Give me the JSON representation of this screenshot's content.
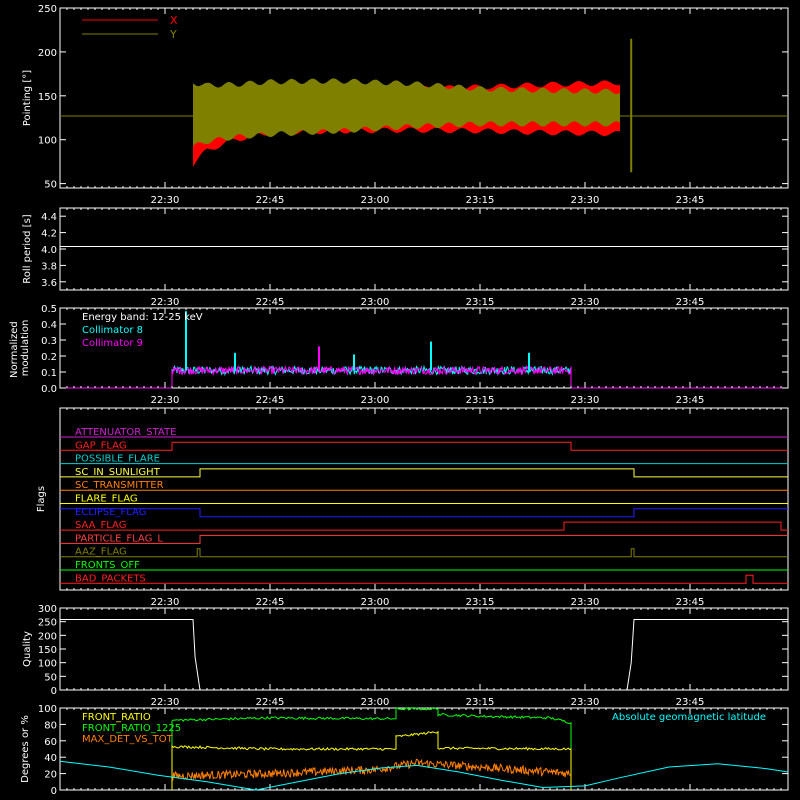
{
  "x_ticks": [
    "22:30",
    "22:45",
    "23:00",
    "23:15",
    "23:30",
    "23:45"
  ],
  "chart_data": [
    {
      "id": "pointing",
      "type": "line",
      "ylabel": "Pointing [°]",
      "ylim": [
        45,
        250
      ],
      "yticks": [
        "50",
        "100",
        "150",
        "200",
        "250"
      ],
      "yticks_values": [
        50,
        100,
        150,
        200,
        250
      ],
      "legend": {
        "placement": "top-left",
        "entries": [
          {
            "name": "X",
            "color": "#ff0000"
          },
          {
            "name": "Y",
            "color": "#808000"
          }
        ]
      },
      "series": [
        {
          "name": "X",
          "color": "#ff0000",
          "envelope": [
            {
              "t": "22:34",
              "lo": 72,
              "hi": 160
            },
            {
              "t": "22:36",
              "lo": 88,
              "hi": 152
            },
            {
              "t": "22:40",
              "lo": 100,
              "hi": 155
            },
            {
              "t": "22:45",
              "lo": 108,
              "hi": 158
            },
            {
              "t": "22:55",
              "lo": 110,
              "hi": 157
            },
            {
              "t": "23:05",
              "lo": 111,
              "hi": 158
            },
            {
              "t": "23:15",
              "lo": 110,
              "hi": 160
            },
            {
              "t": "23:25",
              "lo": 108,
              "hi": 163
            },
            {
              "t": "23:35",
              "lo": 107,
              "hi": 165
            }
          ]
        },
        {
          "name": "Y",
          "color": "#808000",
          "envelope": [
            {
              "t": "22:34",
              "lo": 92,
              "hi": 165
            },
            {
              "t": "22:36",
              "lo": 98,
              "hi": 162
            },
            {
              "t": "22:40",
              "lo": 103,
              "hi": 163
            },
            {
              "t": "22:45",
              "lo": 106,
              "hi": 166
            },
            {
              "t": "22:55",
              "lo": 110,
              "hi": 167
            },
            {
              "t": "23:05",
              "lo": 115,
              "hi": 164
            },
            {
              "t": "23:15",
              "lo": 118,
              "hi": 158
            },
            {
              "t": "23:25",
              "lo": 118,
              "hi": 156
            },
            {
              "t": "23:35",
              "lo": 118,
              "hi": 155
            }
          ]
        }
      ],
      "baseline": {
        "value": 127,
        "color": "#808000"
      }
    },
    {
      "id": "roll",
      "type": "line",
      "ylabel": "Roll period [s]",
      "ylim": [
        3.5,
        4.5
      ],
      "yticks": [
        "3.6",
        "3.8",
        "4.0",
        "4.2",
        "4.4"
      ],
      "yticks_values": [
        3.6,
        3.8,
        4.0,
        4.2,
        4.4
      ],
      "series": [
        {
          "name": "",
          "color": "#ffffff",
          "x": [
            "22:15",
            "23:59"
          ],
          "y": [
            4.03,
            4.03
          ]
        }
      ]
    },
    {
      "id": "modulation",
      "type": "line",
      "ylabel": "Normalized modulation",
      "ylim": [
        0,
        0.5
      ],
      "yticks": [
        "0.0",
        "0.1",
        "0.2",
        "0.3",
        "0.4",
        "0.5"
      ],
      "yticks_values": [
        0,
        0.1,
        0.2,
        0.3,
        0.4,
        0.5
      ],
      "annotation": "Energy band: 12-25 keV",
      "legend": {
        "placement": "top-left",
        "entries": [
          {
            "name": "Collimator 8",
            "color": "#00ffff"
          },
          {
            "name": "Collimator 9",
            "color": "#ff00ff"
          }
        ]
      },
      "span": [
        "22:31",
        "23:28"
      ],
      "level": 0.11,
      "spikes": [
        {
          "t": "22:33",
          "y": 0.48,
          "color": "#00ffff"
        },
        {
          "t": "22:40",
          "y": 0.22,
          "color": "#00ffff"
        },
        {
          "t": "22:52",
          "y": 0.26,
          "color": "#ff00ff"
        },
        {
          "t": "22:57",
          "y": 0.21,
          "color": "#00ffff"
        },
        {
          "t": "23:08",
          "y": 0.29,
          "color": "#00ffff"
        },
        {
          "t": "23:22",
          "y": 0.22,
          "color": "#00ffff"
        }
      ],
      "outside_value": 0
    },
    {
      "id": "flags",
      "type": "line",
      "ylabel": "Flags",
      "flags": [
        {
          "name": "ATTENUATOR_STATE",
          "color": "#d020d0",
          "steps": [
            {
              "t": "22:15",
              "v": 0
            }
          ]
        },
        {
          "name": "GAP_FLAG",
          "color": "#ff2020",
          "steps": [
            {
              "t": "22:15",
              "v": 0
            },
            {
              "t": "22:31",
              "v": 1
            },
            {
              "t": "23:28",
              "v": 0
            }
          ]
        },
        {
          "name": "POSSIBLE_FLARE",
          "color": "#00d0d0",
          "steps": [
            {
              "t": "22:15",
              "v": 0
            }
          ]
        },
        {
          "name": "SC_IN_SUNLIGHT",
          "color": "#ffff40",
          "steps": [
            {
              "t": "22:15",
              "v": 0
            },
            {
              "t": "22:35",
              "v": 1
            },
            {
              "t": "23:37",
              "v": 0
            }
          ]
        },
        {
          "name": "SC_TRANSMITTER",
          "color": "#ff8000",
          "steps": [
            {
              "t": "22:15",
              "v": 0
            }
          ]
        },
        {
          "name": "FLARE_FLAG",
          "color": "#ffff00",
          "steps": [
            {
              "t": "22:15",
              "v": 0
            }
          ]
        },
        {
          "name": "ECLIPSE_FLAG",
          "color": "#2020ff",
          "steps": [
            {
              "t": "22:15",
              "v": 1
            },
            {
              "t": "22:35",
              "v": 0
            },
            {
              "t": "23:37",
              "v": 1
            }
          ]
        },
        {
          "name": "SAA_FLAG",
          "color": "#ff2020",
          "steps": [
            {
              "t": "22:15",
              "v": 0
            },
            {
              "t": "23:27",
              "v": 1
            },
            {
              "t": "23:58",
              "v": 0
            }
          ]
        },
        {
          "name": "PARTICLE_FLAG_L",
          "color": "#ff4040",
          "steps": [
            {
              "t": "22:15",
              "v": 0
            },
            {
              "t": "22:35",
              "v": 1
            }
          ]
        },
        {
          "name": "AAZ_FLAG",
          "color": "#808000",
          "steps": [
            {
              "t": "22:15",
              "v": 0
            },
            {
              "t": "22:34.6",
              "v": 1
            },
            {
              "t": "22:35",
              "v": 0
            },
            {
              "t": "23:36.6",
              "v": 1
            },
            {
              "t": "23:37",
              "v": 0
            }
          ]
        },
        {
          "name": "FRONTS_OFF",
          "color": "#00ff00",
          "steps": [
            {
              "t": "22:15",
              "v": 0
            }
          ]
        },
        {
          "name": "BAD_PACKETS",
          "color": "#ff2020",
          "steps": [
            {
              "t": "22:15",
              "v": 0
            },
            {
              "t": "23:53",
              "v": 1
            },
            {
              "t": "23:54",
              "v": 0
            }
          ]
        }
      ]
    },
    {
      "id": "quality",
      "type": "line",
      "ylabel": "Quality",
      "ylim": [
        0,
        300
      ],
      "yticks": [
        "0",
        "50",
        "100",
        "150",
        "200",
        "250",
        "300"
      ],
      "yticks_values": [
        0,
        50,
        100,
        150,
        200,
        250,
        300
      ],
      "series": [
        {
          "name": "",
          "color": "#ffffff",
          "x": [
            "22:15",
            "22:34",
            "22:34.3",
            "22:35",
            "23:36",
            "23:36.6",
            "23:37",
            "23:59"
          ],
          "y": [
            258,
            258,
            120,
            0,
            0,
            100,
            258,
            258
          ]
        }
      ]
    },
    {
      "id": "front",
      "type": "line",
      "ylabel": "Degrees or %",
      "ylim": [
        0,
        100
      ],
      "yticks": [
        "0",
        "20",
        "40",
        "60",
        "80",
        "100"
      ],
      "yticks_values": [
        0,
        20,
        40,
        60,
        80,
        100
      ],
      "legend": {
        "placement": "top-left",
        "entries": [
          {
            "name": "FRONT_RATIO",
            "color": "#ffff00"
          },
          {
            "name": "FRONT_RATIO_1225",
            "color": "#00ff00"
          },
          {
            "name": "MAX_DET_VS_TOT",
            "color": "#ff8000"
          }
        ]
      },
      "label_right": {
        "text": "Absolute geomagnetic latitude",
        "color": "#00ffff"
      },
      "series": [
        {
          "name": "FRONT_RATIO_1225",
          "color": "#00ff00",
          "x": [
            "22:31",
            "22:31",
            "22:45",
            "23:00",
            "23:03",
            "23:03",
            "23:09",
            "23:09",
            "23:15",
            "23:25",
            "23:28",
            "23:28"
          ],
          "y": [
            0,
            85,
            88,
            87,
            87,
            99,
            99,
            92,
            90,
            88,
            82,
            0
          ]
        },
        {
          "name": "FRONT_RATIO",
          "color": "#ffff00",
          "x": [
            "22:31",
            "22:31",
            "22:45",
            "23:03",
            "23:03",
            "23:09",
            "23:09",
            "23:28",
            "23:28"
          ],
          "y": [
            0,
            53,
            50,
            50,
            65,
            71,
            51,
            50,
            0
          ]
        },
        {
          "name": "MAX_DET_VS_TOT",
          "color": "#ff8000",
          "x": [
            "22:31",
            "22:45",
            "23:00",
            "23:06",
            "23:15",
            "23:28"
          ],
          "y": [
            17,
            20,
            25,
            33,
            28,
            20
          ]
        },
        {
          "name": "Absolute geomagnetic latitude",
          "color": "#00ffff",
          "x": [
            "22:15",
            "22:22",
            "22:29",
            "22:36",
            "22:43",
            "22:49",
            "22:55",
            "23:01",
            "23:06",
            "23:12",
            "23:18",
            "23:24",
            "23:30",
            "23:35",
            "23:42",
            "23:49",
            "23:56",
            "23:59"
          ],
          "y": [
            35,
            28,
            18,
            10,
            0,
            10,
            20,
            27,
            30,
            22,
            12,
            3,
            5,
            15,
            28,
            32,
            26,
            22
          ]
        }
      ]
    }
  ]
}
